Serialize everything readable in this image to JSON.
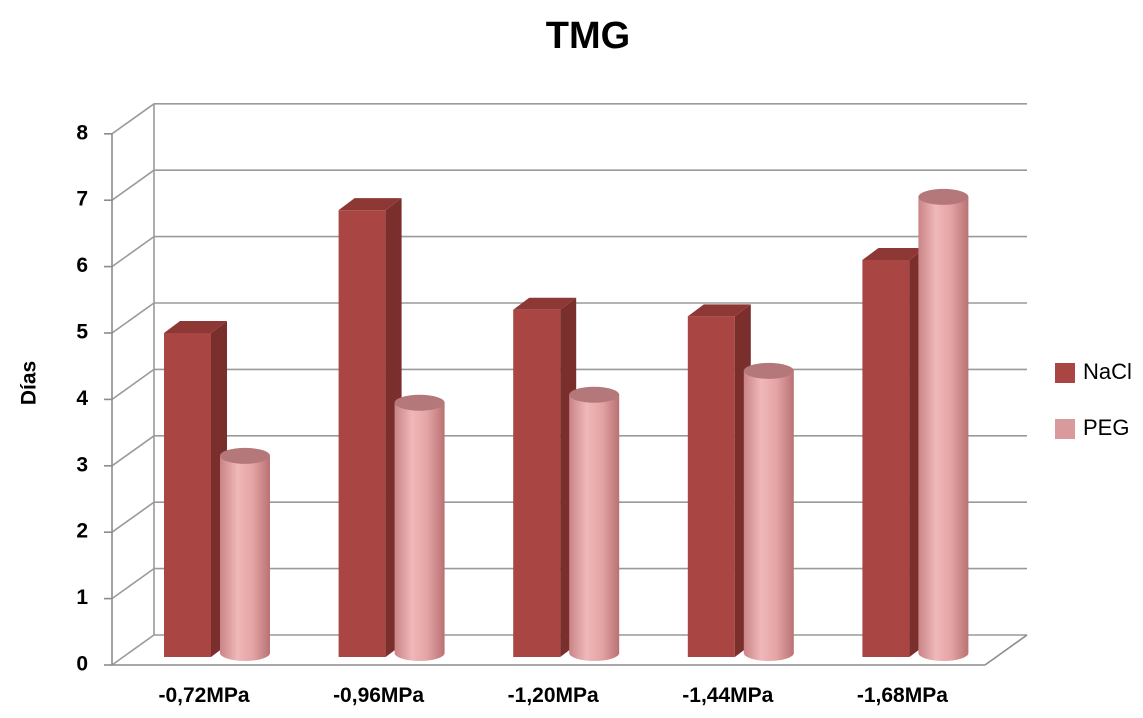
{
  "chart_data": {
    "type": "bar",
    "title": "TMG",
    "ylabel": "Días",
    "xlabel": "",
    "categories": [
      "-0,72MPa",
      "-0,96MPa",
      "-1,20MPa",
      "-1,44MPa",
      "-1,68MPa"
    ],
    "series": [
      {
        "name": "NaCl",
        "values": [
          5.0,
          6.85,
          5.35,
          5.25,
          6.1
        ],
        "color": "#a94542",
        "shape": "box"
      },
      {
        "name": "PEG",
        "values": [
          3.15,
          3.95,
          4.07,
          4.43,
          7.05
        ],
        "color": "#d99a9b",
        "shape": "cylinder"
      }
    ],
    "ylim": [
      0,
      8
    ],
    "yticks": [
      "0",
      "1",
      "2",
      "3",
      "4",
      "5",
      "6",
      "7",
      "8"
    ],
    "grid": true,
    "legend": "right",
    "style": "3d"
  }
}
